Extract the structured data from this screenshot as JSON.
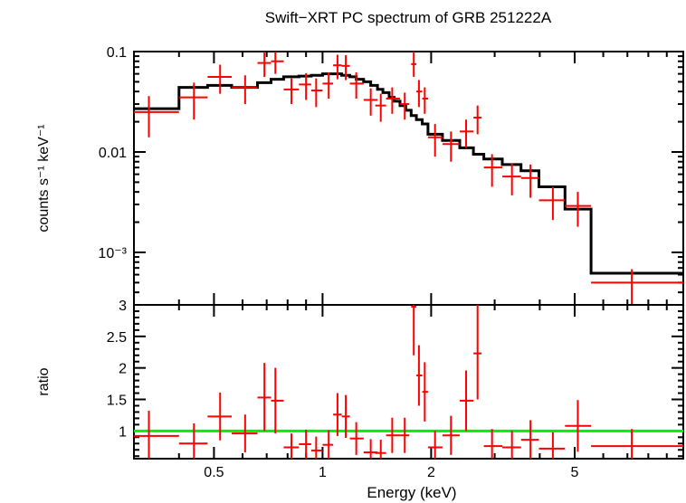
{
  "chart_data": {
    "type": "scatter",
    "title": "Swift−XRT PC spectrum of GRB 251222A",
    "xlabel": "Energy (keV)",
    "x_scale": "log",
    "xlim": [
      0.3,
      10
    ],
    "x_ticks": [
      {
        "value": 0.5,
        "label": "0.5"
      },
      {
        "value": 1,
        "label": "1"
      },
      {
        "value": 2,
        "label": "2"
      },
      {
        "value": 5,
        "label": "5"
      }
    ],
    "panels": [
      {
        "name": "spectrum",
        "ylabel": "counts s⁻¹ keV⁻¹",
        "y_scale": "log",
        "ylim": [
          0.0003,
          0.1
        ],
        "y_ticks": [
          {
            "value": 0.1,
            "label": "0.1"
          },
          {
            "value": 0.01,
            "label": "0.01"
          },
          {
            "value": 0.001,
            "label": "10⁻³"
          }
        ],
        "series": [
          {
            "role": "data",
            "color": "#ff0000",
            "points": [
              {
                "x": 0.33,
                "xlo": 0.3,
                "xhi": 0.4,
                "y": 0.025,
                "ylo": 0.014,
                "yhi": 0.036
              },
              {
                "x": 0.44,
                "xlo": 0.4,
                "xhi": 0.48,
                "y": 0.035,
                "ylo": 0.021,
                "yhi": 0.049
              },
              {
                "x": 0.52,
                "xlo": 0.48,
                "xhi": 0.56,
                "y": 0.056,
                "ylo": 0.038,
                "yhi": 0.074
              },
              {
                "x": 0.61,
                "xlo": 0.56,
                "xhi": 0.66,
                "y": 0.044,
                "ylo": 0.03,
                "yhi": 0.058
              },
              {
                "x": 0.69,
                "xlo": 0.66,
                "xhi": 0.72,
                "y": 0.077,
                "ylo": 0.056,
                "yhi": 0.1
              },
              {
                "x": 0.74,
                "xlo": 0.72,
                "xhi": 0.78,
                "y": 0.08,
                "ylo": 0.06,
                "yhi": 0.1
              },
              {
                "x": 0.82,
                "xlo": 0.78,
                "xhi": 0.86,
                "y": 0.042,
                "ylo": 0.03,
                "yhi": 0.054
              },
              {
                "x": 0.9,
                "xlo": 0.86,
                "xhi": 0.93,
                "y": 0.047,
                "ylo": 0.033,
                "yhi": 0.061
              },
              {
                "x": 0.96,
                "xlo": 0.93,
                "xhi": 1.0,
                "y": 0.041,
                "ylo": 0.028,
                "yhi": 0.054
              },
              {
                "x": 1.04,
                "xlo": 1.0,
                "xhi": 1.07,
                "y": 0.048,
                "ylo": 0.034,
                "yhi": 0.062
              },
              {
                "x": 1.1,
                "xlo": 1.07,
                "xhi": 1.13,
                "y": 0.073,
                "ylo": 0.053,
                "yhi": 0.093
              },
              {
                "x": 1.16,
                "xlo": 1.13,
                "xhi": 1.19,
                "y": 0.072,
                "ylo": 0.052,
                "yhi": 0.092
              },
              {
                "x": 1.24,
                "xlo": 1.19,
                "xhi": 1.3,
                "y": 0.048,
                "ylo": 0.034,
                "yhi": 0.062
              },
              {
                "x": 1.36,
                "xlo": 1.3,
                "xhi": 1.42,
                "y": 0.033,
                "ylo": 0.023,
                "yhi": 0.043
              },
              {
                "x": 1.45,
                "xlo": 1.4,
                "xhi": 1.5,
                "y": 0.029,
                "ylo": 0.02,
                "yhi": 0.038
              },
              {
                "x": 1.56,
                "xlo": 1.5,
                "xhi": 1.64,
                "y": 0.034,
                "ylo": 0.024,
                "yhi": 0.044
              },
              {
                "x": 1.69,
                "xlo": 1.64,
                "xhi": 1.74,
                "y": 0.03,
                "ylo": 0.021,
                "yhi": 0.039
              },
              {
                "x": 1.79,
                "xlo": 1.76,
                "xhi": 1.82,
                "y": 0.075,
                "ylo": 0.056,
                "yhi": 0.1
              },
              {
                "x": 1.85,
                "xlo": 1.82,
                "xhi": 1.89,
                "y": 0.04,
                "ylo": 0.028,
                "yhi": 0.052
              },
              {
                "x": 1.92,
                "xlo": 1.89,
                "xhi": 1.96,
                "y": 0.034,
                "ylo": 0.024,
                "yhi": 0.044
              },
              {
                "x": 2.05,
                "xlo": 1.96,
                "xhi": 2.15,
                "y": 0.014,
                "ylo": 0.009,
                "yhi": 0.019
              },
              {
                "x": 2.27,
                "xlo": 2.15,
                "xhi": 2.4,
                "y": 0.012,
                "ylo": 0.008,
                "yhi": 0.016
              },
              {
                "x": 2.5,
                "xlo": 2.4,
                "xhi": 2.62,
                "y": 0.016,
                "ylo": 0.011,
                "yhi": 0.021
              },
              {
                "x": 2.69,
                "xlo": 2.62,
                "xhi": 2.76,
                "y": 0.022,
                "ylo": 0.015,
                "yhi": 0.029
              },
              {
                "x": 2.95,
                "xlo": 2.8,
                "xhi": 3.15,
                "y": 0.007,
                "ylo": 0.0045,
                "yhi": 0.0095
              },
              {
                "x": 3.35,
                "xlo": 3.15,
                "xhi": 3.55,
                "y": 0.0057,
                "ylo": 0.0037,
                "yhi": 0.0077
              },
              {
                "x": 3.77,
                "xlo": 3.55,
                "xhi": 3.98,
                "y": 0.0055,
                "ylo": 0.0035,
                "yhi": 0.0075
              },
              {
                "x": 4.35,
                "xlo": 3.98,
                "xhi": 4.7,
                "y": 0.0033,
                "ylo": 0.0021,
                "yhi": 0.0045
              },
              {
                "x": 5.1,
                "xlo": 4.7,
                "xhi": 5.55,
                "y": 0.0029,
                "ylo": 0.0018,
                "yhi": 0.004
              },
              {
                "x": 7.2,
                "xlo": 5.55,
                "xhi": 10.0,
                "y": 0.0005,
                "ylo": 0.0003,
                "yhi": 0.00068
              }
            ]
          },
          {
            "role": "model",
            "color": "#000000",
            "edges": [
              0.3,
              0.4,
              0.48,
              0.56,
              0.66,
              0.72,
              0.78,
              0.86,
              0.93,
              1.0,
              1.07,
              1.13,
              1.19,
              1.24,
              1.3,
              1.36,
              1.42,
              1.47,
              1.53,
              1.58,
              1.64,
              1.7,
              1.76,
              1.82,
              1.89,
              1.96,
              2.15,
              2.4,
              2.62,
              2.8,
              3.15,
              3.55,
              3.98,
              4.7,
              5.55,
              10.0
            ],
            "values": [
              0.027,
              0.044,
              0.046,
              0.044,
              0.049,
              0.053,
              0.056,
              0.057,
              0.058,
              0.06,
              0.06,
              0.058,
              0.056,
              0.053,
              0.05,
              0.046,
              0.042,
              0.039,
              0.035,
              0.032,
              0.029,
              0.026,
              0.023,
              0.021,
              0.019,
              0.015,
              0.013,
              0.011,
              0.0095,
              0.0085,
              0.0075,
              0.0065,
              0.0045,
              0.0027,
              0.00062
            ]
          }
        ]
      },
      {
        "name": "ratio",
        "ylabel": "ratio",
        "y_scale": "linear",
        "ylim": [
          0.56,
          3.0
        ],
        "y_ticks": [
          {
            "value": 1,
            "label": "1"
          },
          {
            "value": 1.5,
            "label": "1.5"
          },
          {
            "value": 2,
            "label": "2"
          },
          {
            "value": 2.5,
            "label": "2.5"
          },
          {
            "value": 3,
            "label": "3"
          }
        ],
        "reference_line": {
          "y": 1,
          "color": "#00ee00"
        },
        "series": [
          {
            "role": "data",
            "color": "#ff0000",
            "points": [
              {
                "x": 0.33,
                "xlo": 0.3,
                "xhi": 0.4,
                "y": 0.92,
                "ylo": 0.52,
                "yhi": 1.32
              },
              {
                "x": 0.44,
                "xlo": 0.4,
                "xhi": 0.48,
                "y": 0.8,
                "ylo": 0.48,
                "yhi": 1.12
              },
              {
                "x": 0.52,
                "xlo": 0.48,
                "xhi": 0.56,
                "y": 1.23,
                "ylo": 0.85,
                "yhi": 1.61
              },
              {
                "x": 0.61,
                "xlo": 0.56,
                "xhi": 0.66,
                "y": 0.96,
                "ylo": 0.66,
                "yhi": 1.26
              },
              {
                "x": 0.69,
                "xlo": 0.66,
                "xhi": 0.72,
                "y": 1.53,
                "ylo": 1.0,
                "yhi": 2.08
              },
              {
                "x": 0.74,
                "xlo": 0.72,
                "xhi": 0.78,
                "y": 1.48,
                "ylo": 0.96,
                "yhi": 2.0
              },
              {
                "x": 0.82,
                "xlo": 0.78,
                "xhi": 0.86,
                "y": 0.74,
                "ylo": 0.52,
                "yhi": 0.96
              },
              {
                "x": 0.9,
                "xlo": 0.86,
                "xhi": 0.93,
                "y": 0.79,
                "ylo": 0.56,
                "yhi": 1.02
              },
              {
                "x": 0.96,
                "xlo": 0.93,
                "xhi": 1.0,
                "y": 0.69,
                "ylo": 0.47,
                "yhi": 0.91
              },
              {
                "x": 1.04,
                "xlo": 1.0,
                "xhi": 1.07,
                "y": 0.78,
                "ylo": 0.55,
                "yhi": 1.01
              },
              {
                "x": 1.1,
                "xlo": 1.07,
                "xhi": 1.13,
                "y": 1.26,
                "ylo": 0.92,
                "yhi": 1.6
              },
              {
                "x": 1.16,
                "xlo": 1.13,
                "xhi": 1.19,
                "y": 1.23,
                "ylo": 0.89,
                "yhi": 1.57
              },
              {
                "x": 1.24,
                "xlo": 1.19,
                "xhi": 1.3,
                "y": 0.88,
                "ylo": 0.62,
                "yhi": 1.14
              },
              {
                "x": 1.36,
                "xlo": 1.3,
                "xhi": 1.42,
                "y": 0.66,
                "ylo": 0.45,
                "yhi": 0.87
              },
              {
                "x": 1.45,
                "xlo": 1.4,
                "xhi": 1.5,
                "y": 0.65,
                "ylo": 0.45,
                "yhi": 0.86
              },
              {
                "x": 1.56,
                "xlo": 1.5,
                "xhi": 1.64,
                "y": 0.93,
                "ylo": 0.65,
                "yhi": 1.21
              },
              {
                "x": 1.69,
                "xlo": 1.64,
                "xhi": 1.74,
                "y": 0.93,
                "ylo": 0.65,
                "yhi": 1.21
              },
              {
                "x": 1.79,
                "xlo": 1.76,
                "xhi": 1.82,
                "y": 2.97,
                "ylo": 2.2,
                "yhi": 3.0
              },
              {
                "x": 1.85,
                "xlo": 1.82,
                "xhi": 1.89,
                "y": 1.88,
                "ylo": 1.4,
                "yhi": 2.36
              },
              {
                "x": 1.92,
                "xlo": 1.89,
                "xhi": 1.96,
                "y": 1.62,
                "ylo": 1.15,
                "yhi": 2.09
              },
              {
                "x": 2.05,
                "xlo": 1.96,
                "xhi": 2.15,
                "y": 0.74,
                "ylo": 0.48,
                "yhi": 1.0
              },
              {
                "x": 2.27,
                "xlo": 2.15,
                "xhi": 2.4,
                "y": 0.93,
                "ylo": 0.62,
                "yhi": 1.24
              },
              {
                "x": 2.5,
                "xlo": 2.4,
                "xhi": 2.62,
                "y": 1.48,
                "ylo": 1.0,
                "yhi": 1.96
              },
              {
                "x": 2.69,
                "xlo": 2.62,
                "xhi": 2.76,
                "y": 2.23,
                "ylo": 1.5,
                "yhi": 3.0
              },
              {
                "x": 2.95,
                "xlo": 2.8,
                "xhi": 3.15,
                "y": 0.76,
                "ylo": 0.49,
                "yhi": 1.03
              },
              {
                "x": 3.35,
                "xlo": 3.15,
                "xhi": 3.55,
                "y": 0.74,
                "ylo": 0.48,
                "yhi": 1.0
              },
              {
                "x": 3.77,
                "xlo": 3.55,
                "xhi": 3.98,
                "y": 0.86,
                "ylo": 0.55,
                "yhi": 1.17
              },
              {
                "x": 4.35,
                "xlo": 3.98,
                "xhi": 4.7,
                "y": 0.72,
                "ylo": 0.46,
                "yhi": 0.98
              },
              {
                "x": 5.1,
                "xlo": 4.7,
                "xhi": 5.55,
                "y": 1.08,
                "ylo": 0.67,
                "yhi": 1.49
              },
              {
                "x": 7.2,
                "xlo": 5.55,
                "xhi": 10.0,
                "y": 0.76,
                "ylo": 0.49,
                "yhi": 1.03
              }
            ]
          }
        ]
      }
    ]
  }
}
